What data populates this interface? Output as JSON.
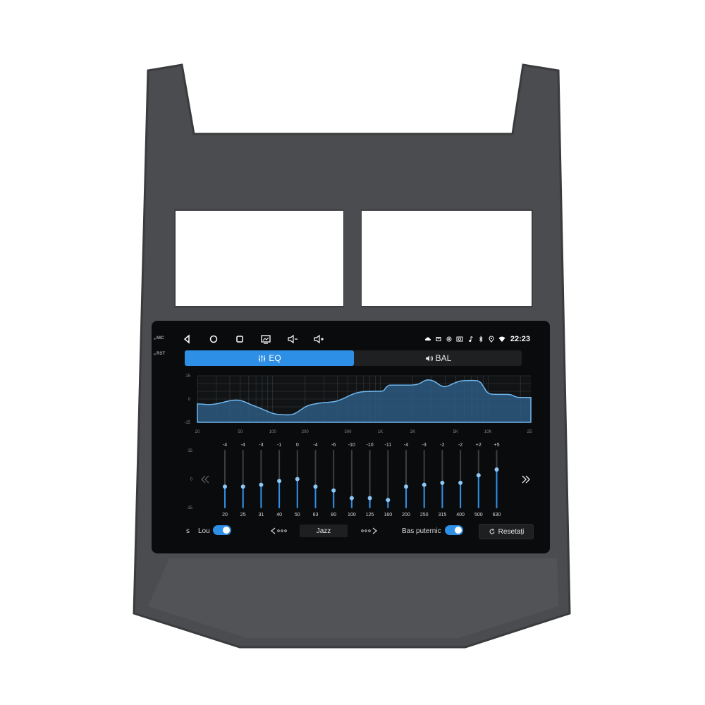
{
  "hardware": {
    "mic_label": "MIC",
    "rst_label": "RST"
  },
  "statusbar": {
    "time": "22:23",
    "icons": [
      "cloud-icon",
      "sd-card-icon",
      "gps-icon",
      "camera-icon",
      "music-note-icon",
      "bluetooth-icon",
      "location-icon",
      "wifi-icon"
    ]
  },
  "navbar": {
    "buttons": [
      "back-icon",
      "home-icon",
      "recents-icon",
      "screenshot-icon",
      "volume-down-icon",
      "volume-up-icon"
    ]
  },
  "tabs": {
    "eq_label": "EQ",
    "bal_label": "BAL",
    "active": "EQ"
  },
  "accent_color": "#2e8fe6",
  "chart_data": [
    {
      "type": "area",
      "x_scale": "log",
      "ylim": [
        -15,
        15
      ],
      "y_ticks": [
        "15",
        "0",
        "-15"
      ],
      "x_ticks": [
        "20",
        "50",
        "100",
        "200",
        "500",
        "1K",
        "2K",
        "5K",
        "10K",
        "25K"
      ],
      "grid": true
    },
    {
      "type": "bar",
      "ylim": [
        -15,
        15
      ],
      "y_ticks": [
        "15",
        "0",
        "-15"
      ],
      "categories": [
        "20",
        "25",
        "31",
        "40",
        "50",
        "63",
        "80",
        "100",
        "125",
        "160",
        "200",
        "250",
        "315",
        "400",
        "500",
        "630"
      ],
      "values": [
        -4,
        -4,
        -3,
        -1,
        0,
        -4,
        -6,
        -10,
        -10,
        -11,
        -4,
        -3,
        -2,
        -2,
        2,
        5
      ],
      "value_labels": [
        "-4",
        "-4",
        "-3",
        "-1",
        "0",
        "-4",
        "-6",
        "-10",
        "-10",
        "-11",
        "-4",
        "-3",
        "-2",
        "-2",
        "+2",
        "+5"
      ]
    }
  ],
  "controls": {
    "left_partial": "s",
    "loudness_label": "Lou",
    "loudness_on": true,
    "preset": "Jazz",
    "bass_label": "Bas puternic",
    "bass_on": true,
    "reset_label": "Resetați"
  }
}
